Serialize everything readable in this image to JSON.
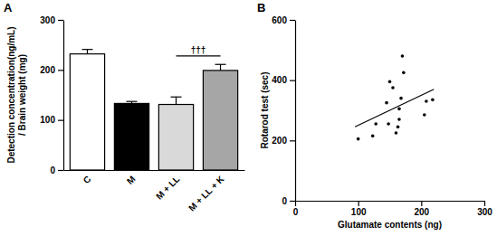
{
  "chart_data": [
    {
      "type": "bar",
      "title": "A",
      "categories": [
        "C",
        "M",
        "M + LL",
        "M + LL + K"
      ],
      "values": [
        232,
        133,
        131,
        199
      ],
      "errors": [
        9,
        4,
        15,
        12
      ],
      "colors": [
        "#ffffff",
        "#000000",
        "#d9d9d9",
        "#a6a6a6"
      ],
      "ylabel": [
        "Detection concentration(ng/mL)",
        "/ Brain weight (mg)"
      ],
      "ylim": [
        0,
        300
      ],
      "yticks": [
        0,
        100,
        200,
        300
      ],
      "grid": false,
      "annotations": [
        {
          "text": "†††",
          "from": 2,
          "to": 3,
          "y": 228
        }
      ]
    },
    {
      "type": "scatter",
      "title": "B",
      "x": [
        100,
        123,
        128,
        145,
        150,
        155,
        160,
        163,
        165,
        168,
        170,
        172,
        148,
        205,
        208,
        218,
        165
      ],
      "values": [
        205,
        215,
        255,
        325,
        395,
        375,
        225,
        245,
        305,
        340,
        480,
        425,
        255,
        285,
        330,
        335,
        270
      ],
      "fit": {
        "x": [
          95,
          220
        ],
        "values": [
          245,
          370
        ]
      },
      "color": "#000000",
      "xlabel": "Glutamate contents (ng)",
      "ylabel": "Rotarod test (sec)",
      "xlim": [
        0,
        300
      ],
      "xticks": [
        0,
        100,
        200,
        300
      ],
      "ylim": [
        0,
        600
      ],
      "yticks": [
        0,
        200,
        400,
        600
      ],
      "grid": false
    }
  ]
}
